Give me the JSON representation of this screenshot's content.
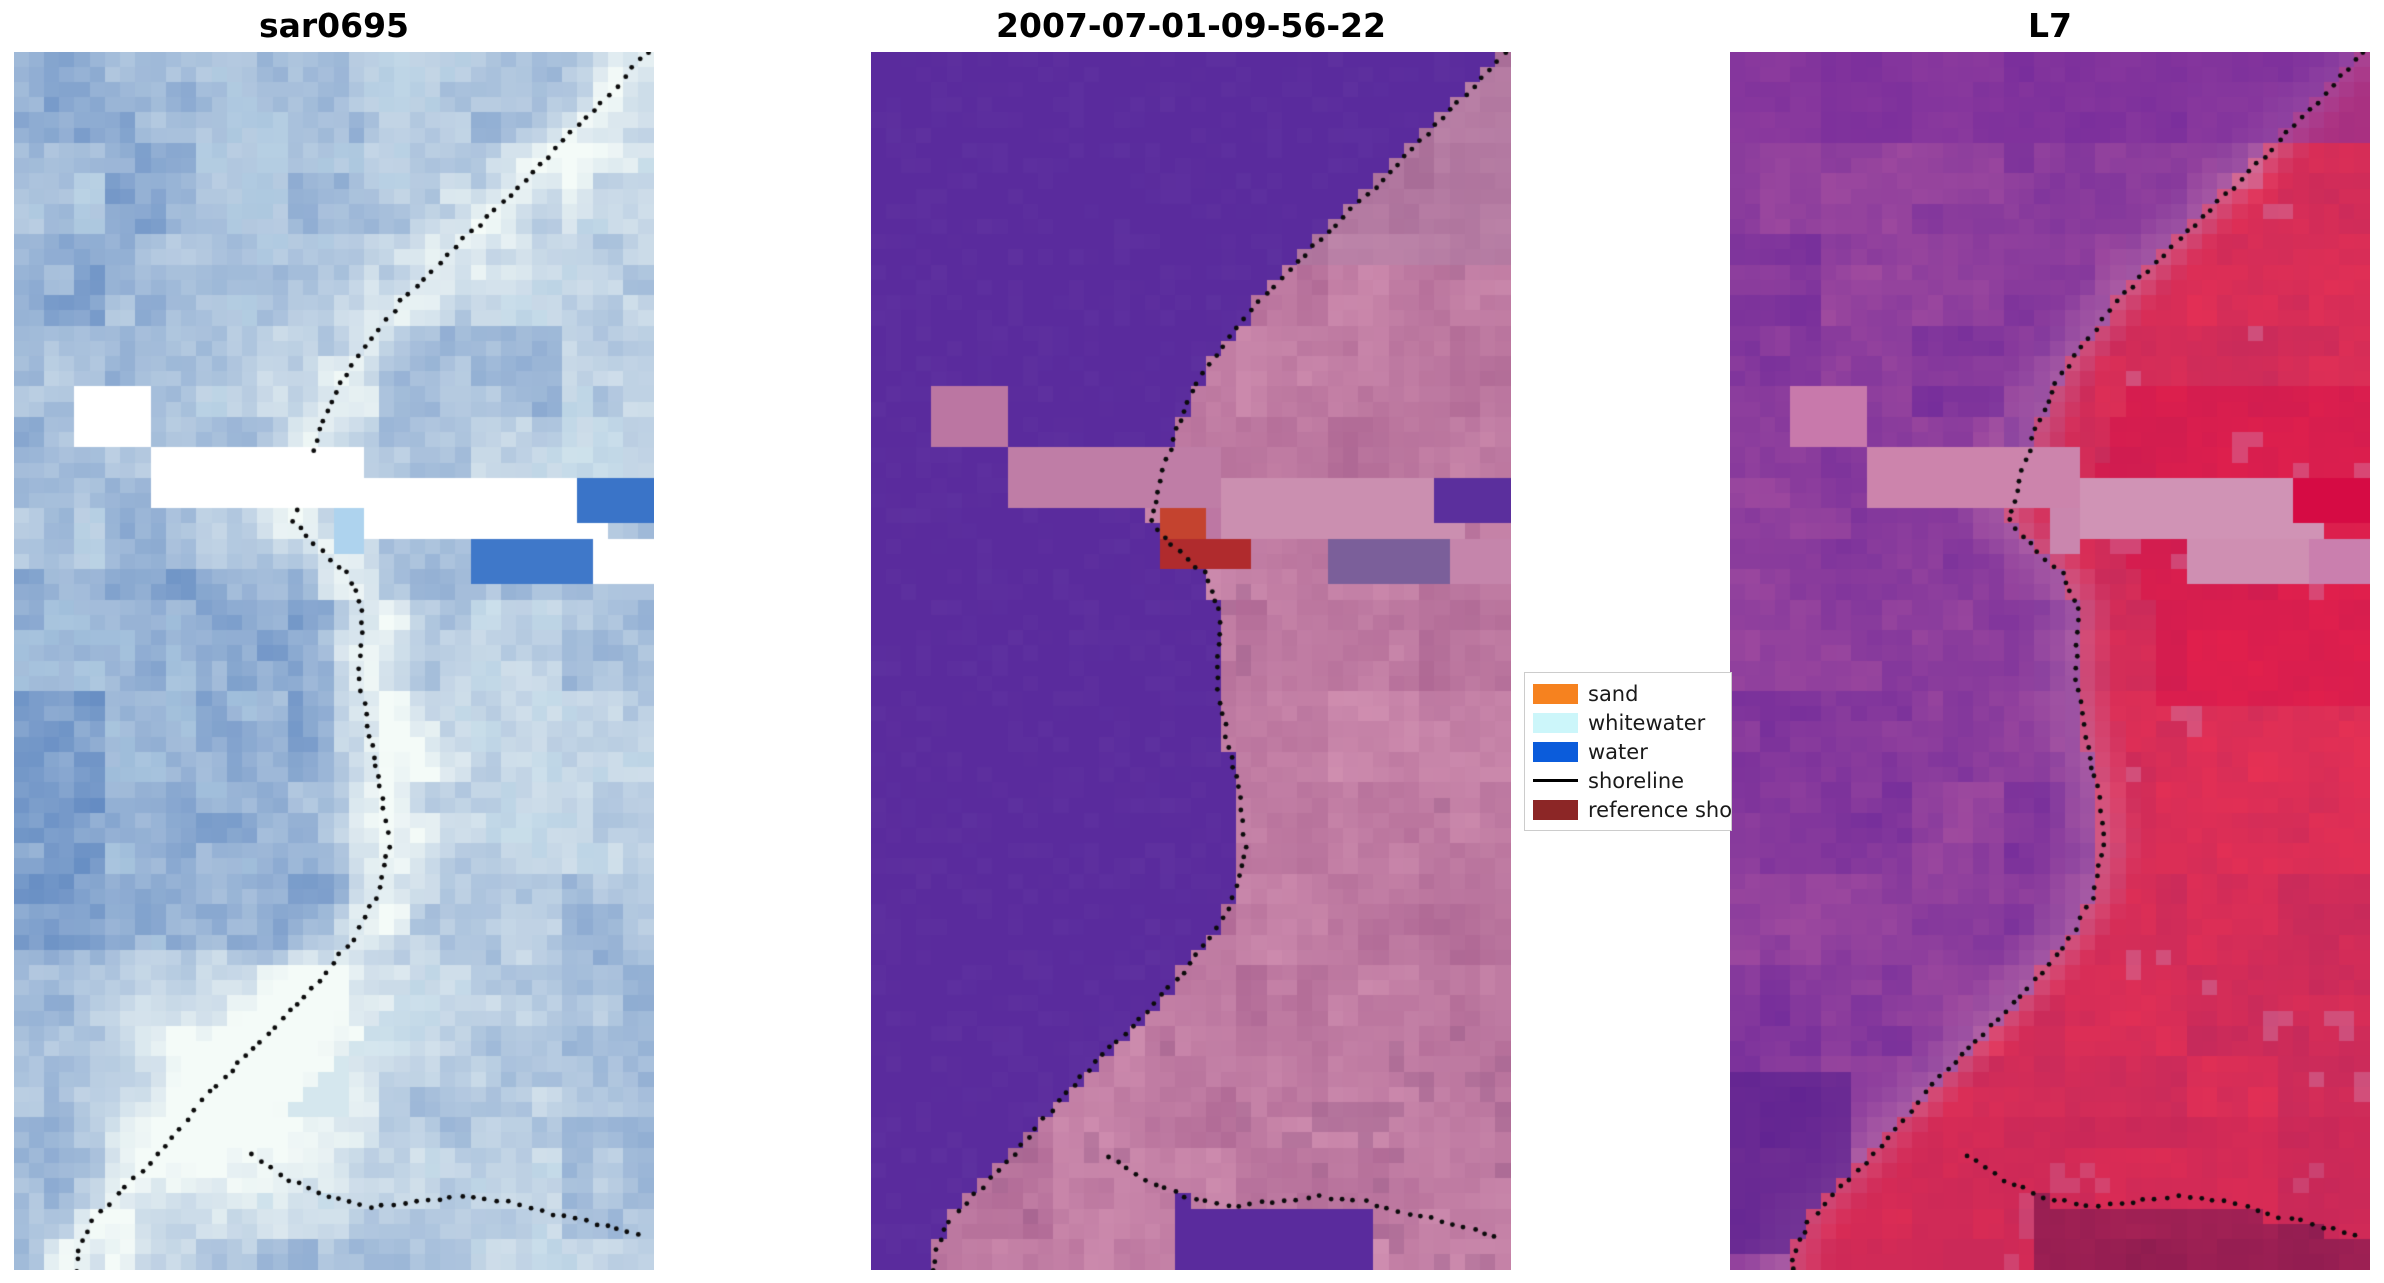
{
  "figure": {
    "background": "#ffffff"
  },
  "panels": [
    {
      "title": "sar0695",
      "type": "sar"
    },
    {
      "title": "2007-07-01-09-56-22",
      "type": "class"
    },
    {
      "title": "L7",
      "type": "l7"
    }
  ],
  "legend": {
    "items": [
      {
        "key": "sand",
        "label": "sand",
        "color": "#f6821f",
        "kind": "patch"
      },
      {
        "key": "whitewater",
        "label": "whitewater",
        "color": "#ccf6fa",
        "kind": "patch"
      },
      {
        "key": "water",
        "label": "water",
        "color": "#0b5cdb",
        "kind": "patch"
      },
      {
        "key": "shoreline",
        "label": "shoreline",
        "color": "#000000",
        "kind": "line"
      },
      {
        "key": "reference_shoreline",
        "label": "reference sho",
        "color": "#8c2626",
        "kind": "patch"
      }
    ]
  },
  "chart_data": {
    "type": "heatmap",
    "panel_titles": [
      "sar0695",
      "2007-07-01-09-56-22",
      "L7"
    ],
    "legend_entries": [
      "sand",
      "whitewater",
      "water",
      "shoreline",
      "reference sho"
    ],
    "shoreline_main": [
      [
        0.0,
        0.99
      ],
      [
        0.048,
        0.905
      ],
      [
        0.105,
        0.8
      ],
      [
        0.16,
        0.69
      ],
      [
        0.205,
        0.605
      ],
      [
        0.242,
        0.548
      ],
      [
        0.272,
        0.508
      ],
      [
        0.31,
        0.478
      ],
      [
        0.352,
        0.452
      ],
      [
        0.385,
        0.437
      ],
      [
        0.404,
        0.468
      ],
      [
        0.428,
        0.52
      ],
      [
        0.458,
        0.545
      ],
      [
        0.515,
        0.54
      ],
      [
        0.562,
        0.556
      ],
      [
        0.612,
        0.576
      ],
      [
        0.652,
        0.585
      ],
      [
        0.694,
        0.566
      ],
      [
        0.728,
        0.53
      ],
      [
        0.762,
        0.477
      ],
      [
        0.794,
        0.42
      ],
      [
        0.824,
        0.362
      ],
      [
        0.854,
        0.306
      ],
      [
        0.884,
        0.258
      ],
      [
        0.912,
        0.213
      ],
      [
        0.938,
        0.162
      ],
      [
        0.96,
        0.122
      ],
      [
        0.984,
        0.102
      ],
      [
        1.0,
        0.097
      ]
    ],
    "shoreline_branch": [
      [
        0.372,
        0.906
      ],
      [
        0.43,
        0.926
      ],
      [
        0.49,
        0.94
      ],
      [
        0.558,
        0.948
      ],
      [
        0.628,
        0.944
      ],
      [
        0.7,
        0.94
      ],
      [
        0.772,
        0.944
      ],
      [
        0.842,
        0.954
      ],
      [
        0.91,
        0.962
      ],
      [
        0.975,
        0.972
      ]
    ],
    "palettes": {
      "sar": {
        "lo": "#5d86c0",
        "hi": "#f4fbf8",
        "speckle": "#8fb9d9"
      },
      "class": {
        "water": "#5a2b9d",
        "land_lo": "#ad6693",
        "land_hi": "#d291b2",
        "mauve": "#a87fa5",
        "dark": "#9a5d8a"
      },
      "l7": {
        "water_lo": "#742d9b",
        "water_hi": "#a34d9f",
        "land_lo": "#c42a5c",
        "land_hi": "#e93154",
        "bright": "#dc0c43",
        "pinkband": "#c87fae",
        "deeppurple": "#571f8e",
        "maroon": "#8c1c50"
      }
    },
    "rects": [
      {
        "u0": 0.1,
        "u1": 0.212,
        "v0": 0.278,
        "v1": 0.328,
        "cloud": true,
        "colors": [
          "#ffffff",
          "#bb76a2",
          "#c879ab"
        ]
      },
      {
        "u0": 0.225,
        "u1": 0.556,
        "v0": 0.328,
        "v1": 0.375,
        "cloud": true,
        "colors": [
          "#ffffff",
          "#bf7da6",
          "#cc84ac"
        ]
      },
      {
        "u0": 0.545,
        "u1": 0.935,
        "v0": 0.352,
        "v1": 0.399,
        "cloud": true,
        "colors": [
          "#ffffff",
          "#cb8fb0",
          "#d093b5"
        ]
      },
      {
        "u0": 0.876,
        "u1": 1.001,
        "v0": 0.344,
        "v1": 0.393,
        "cloud": false,
        "colors": [
          "#3a74c8",
          "#5b2f9d",
          "#d60b44"
        ]
      },
      {
        "u0": 0.915,
        "u1": 1.001,
        "v0": 0.399,
        "v1": 0.443,
        "cloud": false,
        "colors": [
          "#ffffff",
          "#c585ab",
          "#ca7fae"
        ]
      },
      {
        "u0": 0.71,
        "u1": 0.916,
        "v0": 0.402,
        "v1": 0.438,
        "cloud": false,
        "colors": [
          "#3f78c9",
          "#7b5f9a",
          "#cf8fb2"
        ]
      },
      {
        "u0": 0.494,
        "u1": 0.546,
        "v0": 0.375,
        "v1": 0.415,
        "cloud": false,
        "colors": [
          "#aed3ee",
          "#bd77a3",
          "#ca86ae"
        ]
      }
    ],
    "reference_patches": [
      {
        "u0": 0.462,
        "u1": 0.526,
        "v0": 0.38,
        "v1": 0.403,
        "color": "#c4432f"
      },
      {
        "u0": 0.462,
        "u1": 0.586,
        "v0": 0.398,
        "v1": 0.425,
        "color": "#b02b2d"
      }
    ]
  }
}
